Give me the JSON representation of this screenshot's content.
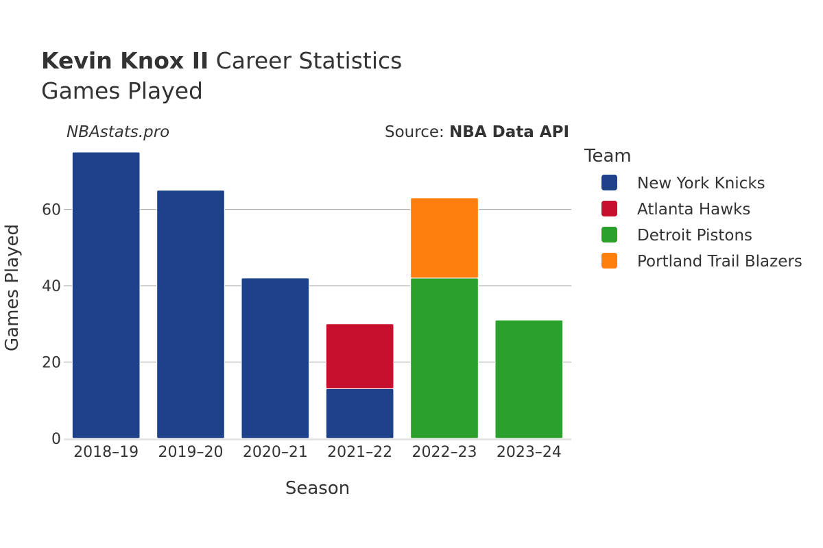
{
  "header": {
    "title_bold": "Kevin Knox II",
    "title_rest": " Career Statistics",
    "subtitle": "Games Played"
  },
  "watermark": "NBAstats.pro",
  "source": {
    "label": "Source: ",
    "value": "NBA Data API"
  },
  "legend": {
    "title": "Team",
    "items": [
      {
        "name": "New York Knicks",
        "color": "#1D428A"
      },
      {
        "name": "Atlanta Hawks",
        "color": "#C8102E"
      },
      {
        "name": "Detroit Pistons",
        "color": "#2CA02C"
      },
      {
        "name": "Portland Trail Blazers",
        "color": "#FF7F0E"
      }
    ]
  },
  "chart_data": {
    "type": "bar",
    "stacked": true,
    "xlabel": "Season",
    "ylabel": "Games Played",
    "ylim": [
      0,
      75
    ],
    "yticks": [
      0,
      20,
      40,
      60
    ],
    "grid": true,
    "legend_position": "right",
    "categories": [
      "2018–19",
      "2019–20",
      "2020–21",
      "2021–22",
      "2022–23",
      "2023–24"
    ],
    "series": [
      {
        "name": "New York Knicks",
        "color": "#1D428A",
        "values": [
          75,
          65,
          42,
          13,
          0,
          0
        ]
      },
      {
        "name": "Atlanta Hawks",
        "color": "#C8102E",
        "values": [
          0,
          0,
          0,
          17,
          0,
          0
        ]
      },
      {
        "name": "Detroit Pistons",
        "color": "#2CA02C",
        "values": [
          0,
          0,
          0,
          0,
          42,
          31
        ]
      },
      {
        "name": "Portland Trail Blazers",
        "color": "#FF7F0E",
        "values": [
          0,
          0,
          0,
          0,
          21,
          0
        ]
      }
    ]
  }
}
